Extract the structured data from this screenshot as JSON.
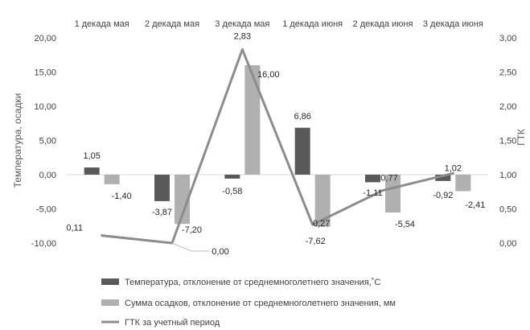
{
  "chart_data": {
    "type": "bar",
    "categories": [
      "1 декада мая",
      "2 декада мая",
      "3 декада мая",
      "1 декада июня",
      "2 декада июня",
      "3 декада июня"
    ],
    "series": [
      {
        "name": "Температура, отклонение от среднемноголетнего значения,˚С",
        "type": "bar",
        "axis": "left",
        "color": "#595959",
        "values": [
          1.05,
          -3.87,
          -0.58,
          6.86,
          -1.11,
          -0.92
        ],
        "labels": [
          "1,05",
          "-3,87",
          "-0,58",
          "6,86",
          "-1,11",
          "-0,92"
        ]
      },
      {
        "name": "Сумма осадков, отклонение от среднемноголетнего значения, мм",
        "type": "bar",
        "axis": "left",
        "color": "#b0b0b0",
        "values": [
          -1.4,
          -7.2,
          16.0,
          -7.62,
          -5.54,
          -2.41
        ],
        "labels": [
          "-1,40",
          "-7,20",
          "16,00",
          "-7,62",
          "-5,54",
          "-2,41"
        ]
      },
      {
        "name": "ГТК за учетный период",
        "type": "line",
        "axis": "right",
        "color": "#8c8c8c",
        "values": [
          0.11,
          0.0,
          2.83,
          0.27,
          0.77,
          1.02
        ],
        "labels": [
          "0,11",
          "0,00",
          "2,83",
          "0,27",
          "0,77",
          "1,02"
        ]
      }
    ],
    "ylabel": "Температура, осадки",
    "y2label": "ГТК",
    "ylim": [
      -10,
      20
    ],
    "y2lim": [
      0,
      3
    ],
    "yticks": [
      "-10,00",
      "-5,00",
      "0,00",
      "5,00",
      "10,00",
      "15,00",
      "20,00"
    ],
    "y2ticks": [
      "0,00",
      "0,50",
      "1,00",
      "1,50",
      "2,00",
      "2,50",
      "3,00"
    ],
    "legend_position": "bottom",
    "category_labels_position": "top",
    "grid": false
  }
}
